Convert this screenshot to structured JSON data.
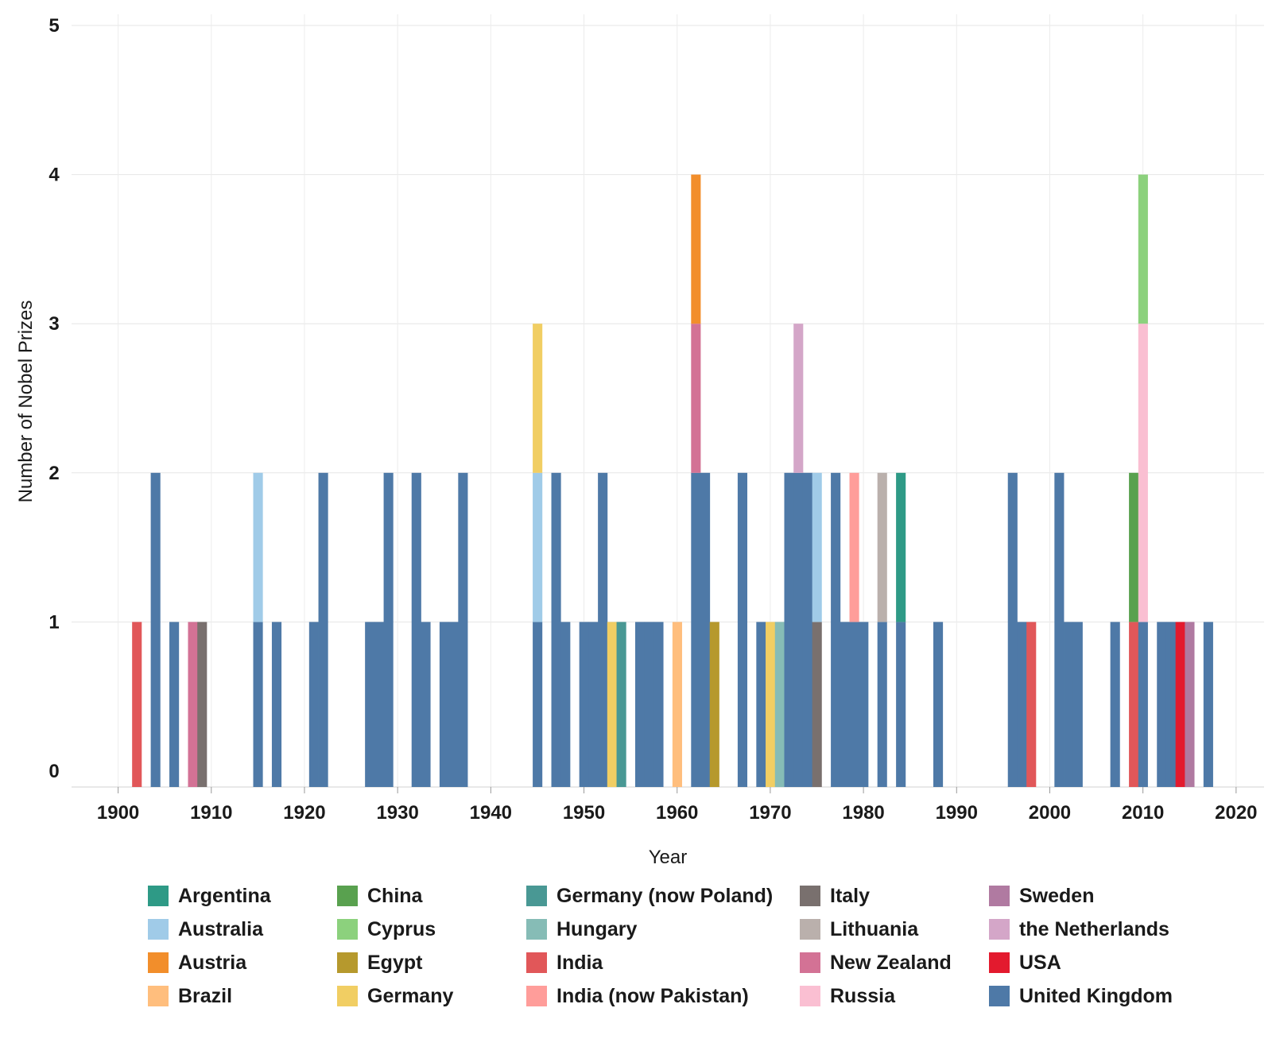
{
  "chart_data": {
    "type": "bar",
    "stacked": true,
    "xlabel": "Year",
    "ylabel": "Number of Nobel Prizes",
    "xlim": [
      1895,
      2023
    ],
    "ylim": [
      0,
      5
    ],
    "x_ticks": [
      1900,
      1910,
      1920,
      1930,
      1940,
      1950,
      1960,
      1970,
      1980,
      1990,
      2000,
      2010,
      2020
    ],
    "y_ticks": [
      0,
      1,
      2,
      3,
      4,
      5
    ],
    "grid": true,
    "legend_position": "bottom",
    "country_order": [
      "United Kingdom",
      "India",
      "Italy",
      "New Zealand",
      "Australia",
      "Germany",
      "Germany (now Poland)",
      "Brazil",
      "Egypt",
      "Hungary",
      "the Netherlands",
      "India (now Pakistan)",
      "Lithuania",
      "Argentina",
      "China",
      "Russia",
      "Cyprus",
      "Austria",
      "USA",
      "Sweden"
    ],
    "colors": {
      "Argentina": "#2e9a86",
      "Australia": "#a0cbe8",
      "Austria": "#f28e2b",
      "Brazil": "#ffbe7d",
      "China": "#59a14f",
      "Cyprus": "#8cd17d",
      "Egypt": "#b6992d",
      "Germany": "#f1ce63",
      "Germany (now Poland)": "#499894",
      "Hungary": "#86bcb6",
      "India": "#e15759",
      "India (now Pakistan)": "#ff9d9a",
      "Italy": "#79706e",
      "Lithuania": "#bab0ac",
      "New Zealand": "#d37295",
      "Russia": "#fabfd2",
      "Sweden": "#b07aa1",
      "the Netherlands": "#d4a6c8",
      "USA": "#e31a2e",
      "United Kingdom": "#4e79a7"
    },
    "data": [
      {
        "year": 1902,
        "counts": {
          "India": 1
        }
      },
      {
        "year": 1904,
        "counts": {
          "United Kingdom": 2
        }
      },
      {
        "year": 1906,
        "counts": {
          "United Kingdom": 1
        }
      },
      {
        "year": 1908,
        "counts": {
          "New Zealand": 1
        }
      },
      {
        "year": 1909,
        "counts": {
          "Italy": 1
        }
      },
      {
        "year": 1915,
        "counts": {
          "United Kingdom": 1,
          "Australia": 1
        }
      },
      {
        "year": 1917,
        "counts": {
          "United Kingdom": 1
        }
      },
      {
        "year": 1921,
        "counts": {
          "United Kingdom": 1
        }
      },
      {
        "year": 1922,
        "counts": {
          "United Kingdom": 2
        }
      },
      {
        "year": 1927,
        "counts": {
          "United Kingdom": 1
        }
      },
      {
        "year": 1928,
        "counts": {
          "United Kingdom": 1
        }
      },
      {
        "year": 1929,
        "counts": {
          "United Kingdom": 2
        }
      },
      {
        "year": 1932,
        "counts": {
          "United Kingdom": 2
        }
      },
      {
        "year": 1933,
        "counts": {
          "United Kingdom": 1
        }
      },
      {
        "year": 1935,
        "counts": {
          "United Kingdom": 1
        }
      },
      {
        "year": 1936,
        "counts": {
          "United Kingdom": 1
        }
      },
      {
        "year": 1937,
        "counts": {
          "United Kingdom": 2
        }
      },
      {
        "year": 1945,
        "counts": {
          "United Kingdom": 1,
          "Germany": 1,
          "Australia": 1
        }
      },
      {
        "year": 1947,
        "counts": {
          "United Kingdom": 2
        }
      },
      {
        "year": 1948,
        "counts": {
          "United Kingdom": 1
        }
      },
      {
        "year": 1950,
        "counts": {
          "United Kingdom": 1
        }
      },
      {
        "year": 1951,
        "counts": {
          "United Kingdom": 1
        }
      },
      {
        "year": 1952,
        "counts": {
          "United Kingdom": 2
        }
      },
      {
        "year": 1953,
        "counts": {
          "Germany": 1
        }
      },
      {
        "year": 1954,
        "counts": {
          "Germany (now Poland)": 1
        }
      },
      {
        "year": 1956,
        "counts": {
          "United Kingdom": 1
        }
      },
      {
        "year": 1957,
        "counts": {
          "United Kingdom": 1
        }
      },
      {
        "year": 1958,
        "counts": {
          "United Kingdom": 1
        }
      },
      {
        "year": 1960,
        "counts": {
          "Brazil": 1
        }
      },
      {
        "year": 1962,
        "counts": {
          "United Kingdom": 2,
          "New Zealand": 1,
          "Austria": 1
        }
      },
      {
        "year": 1963,
        "counts": {
          "United Kingdom": 2
        }
      },
      {
        "year": 1964,
        "counts": {
          "Egypt": 1
        }
      },
      {
        "year": 1967,
        "counts": {
          "United Kingdom": 2
        }
      },
      {
        "year": 1969,
        "counts": {
          "United Kingdom": 1
        }
      },
      {
        "year": 1970,
        "counts": {
          "Germany": 1
        }
      },
      {
        "year": 1971,
        "counts": {
          "Hungary": 1
        }
      },
      {
        "year": 1972,
        "counts": {
          "United Kingdom": 2
        }
      },
      {
        "year": 1973,
        "counts": {
          "United Kingdom": 2,
          "the Netherlands": 1
        }
      },
      {
        "year": 1974,
        "counts": {
          "United Kingdom": 2
        }
      },
      {
        "year": 1975,
        "counts": {
          "Italy": 1,
          "Australia": 1
        }
      },
      {
        "year": 1977,
        "counts": {
          "United Kingdom": 2
        }
      },
      {
        "year": 1978,
        "counts": {
          "United Kingdom": 1
        }
      },
      {
        "year": 1979,
        "counts": {
          "United Kingdom": 1,
          "India (now Pakistan)": 1
        }
      },
      {
        "year": 1980,
        "counts": {
          "United Kingdom": 1
        }
      },
      {
        "year": 1982,
        "counts": {
          "United Kingdom": 1,
          "Lithuania": 1
        }
      },
      {
        "year": 1984,
        "counts": {
          "United Kingdom": 1,
          "Argentina": 1
        }
      },
      {
        "year": 1988,
        "counts": {
          "United Kingdom": 1
        }
      },
      {
        "year": 1996,
        "counts": {
          "United Kingdom": 2
        }
      },
      {
        "year": 1997,
        "counts": {
          "United Kingdom": 1
        }
      },
      {
        "year": 1998,
        "counts": {
          "India": 1
        }
      },
      {
        "year": 2001,
        "counts": {
          "United Kingdom": 2
        }
      },
      {
        "year": 2002,
        "counts": {
          "United Kingdom": 1
        }
      },
      {
        "year": 2003,
        "counts": {
          "United Kingdom": 1
        }
      },
      {
        "year": 2007,
        "counts": {
          "United Kingdom": 1
        }
      },
      {
        "year": 2009,
        "counts": {
          "India": 1,
          "China": 1
        }
      },
      {
        "year": 2010,
        "counts": {
          "United Kingdom": 1,
          "Russia": 2,
          "Cyprus": 1
        }
      },
      {
        "year": 2012,
        "counts": {
          "United Kingdom": 1
        }
      },
      {
        "year": 2013,
        "counts": {
          "United Kingdom": 1
        }
      },
      {
        "year": 2014,
        "counts": {
          "USA": 1
        }
      },
      {
        "year": 2015,
        "counts": {
          "Sweden": 1
        }
      },
      {
        "year": 2017,
        "counts": {
          "United Kingdom": 1
        }
      }
    ]
  },
  "legend": {
    "items": [
      {
        "label": "Argentina",
        "color": "#2e9a86"
      },
      {
        "label": "Australia",
        "color": "#a0cbe8"
      },
      {
        "label": "Austria",
        "color": "#f28e2b"
      },
      {
        "label": "Brazil",
        "color": "#ffbe7d"
      },
      {
        "label": "China",
        "color": "#59a14f"
      },
      {
        "label": "Cyprus",
        "color": "#8cd17d"
      },
      {
        "label": "Egypt",
        "color": "#b6992d"
      },
      {
        "label": "Germany",
        "color": "#f1ce63"
      },
      {
        "label": "Germany (now Poland)",
        "color": "#499894"
      },
      {
        "label": "Hungary",
        "color": "#86bcb6"
      },
      {
        "label": "India",
        "color": "#e15759"
      },
      {
        "label": "India (now Pakistan)",
        "color": "#ff9d9a"
      },
      {
        "label": "Italy",
        "color": "#79706e"
      },
      {
        "label": "Lithuania",
        "color": "#bab0ac"
      },
      {
        "label": "New Zealand",
        "color": "#d37295"
      },
      {
        "label": "Russia",
        "color": "#fabfd2"
      },
      {
        "label": "Sweden",
        "color": "#b07aa1"
      },
      {
        "label": "the Netherlands",
        "color": "#d4a6c8"
      },
      {
        "label": "USA",
        "color": "#e31a2e"
      },
      {
        "label": "United Kingdom",
        "color": "#4e79a7"
      }
    ]
  }
}
